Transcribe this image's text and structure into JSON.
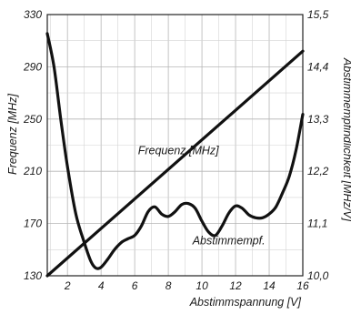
{
  "chart_data": {
    "type": "line",
    "title": "",
    "xlabel": "Abstimmspannung [V]",
    "ylabel_left": "Frequenz [MHz]",
    "ylabel_right": "Abstimmempfindlichkeit [MHz/V]",
    "xlim": [
      0.8,
      16
    ],
    "ylim_left": [
      130,
      330
    ],
    "ylim_right": [
      10.0,
      15.5
    ],
    "x_ticks": [
      2,
      4,
      6,
      8,
      10,
      12,
      14,
      16
    ],
    "x_tick_labels": [
      "2",
      "4",
      "6",
      "8",
      "10",
      "12",
      "14",
      "16"
    ],
    "y_left_ticks": [
      130,
      170,
      210,
      250,
      290,
      330
    ],
    "y_left_tick_labels": [
      "130",
      "170",
      "210",
      "250",
      "290",
      "330"
    ],
    "y_right_ticks": [
      10.0,
      11.1,
      12.2,
      13.3,
      14.4,
      15.5
    ],
    "y_right_tick_labels": [
      "10,0",
      "11,1",
      "12,2",
      "13,3",
      "14,4",
      "15,5"
    ],
    "grid": true,
    "series": [
      {
        "name": "Frequenz [MHz]",
        "axis": "left",
        "x": [
          0.8,
          16.0
        ],
        "y": [
          130,
          302
        ]
      },
      {
        "name": "Abstimmempf.",
        "axis": "right",
        "x": [
          0.8,
          1.2,
          1.6,
          2.0,
          2.5,
          3.0,
          3.4,
          3.7,
          4.0,
          4.4,
          4.8,
          5.2,
          5.6,
          6.0,
          6.4,
          6.8,
          7.2,
          7.6,
          8.0,
          8.4,
          8.8,
          9.2,
          9.6,
          10.0,
          10.4,
          10.8,
          11.2,
          11.6,
          12.0,
          12.4,
          12.8,
          13.2,
          13.6,
          14.0,
          14.4,
          14.8,
          15.2,
          15.6,
          16.0
        ],
        "y": [
          15.1,
          14.4,
          13.3,
          12.3,
          11.3,
          10.7,
          10.3,
          10.16,
          10.18,
          10.35,
          10.55,
          10.7,
          10.78,
          10.85,
          11.05,
          11.35,
          11.45,
          11.3,
          11.25,
          11.35,
          11.5,
          11.52,
          11.42,
          11.15,
          10.92,
          10.85,
          11.05,
          11.32,
          11.47,
          11.42,
          11.28,
          11.22,
          11.22,
          11.3,
          11.45,
          11.75,
          12.1,
          12.65,
          13.4
        ]
      }
    ],
    "annotations": [
      {
        "text": "Frequenz [MHz]",
        "x": 8.6,
        "y": 223
      },
      {
        "text": "Abstimmempf.",
        "x": 11.6,
        "y": 154
      }
    ]
  }
}
